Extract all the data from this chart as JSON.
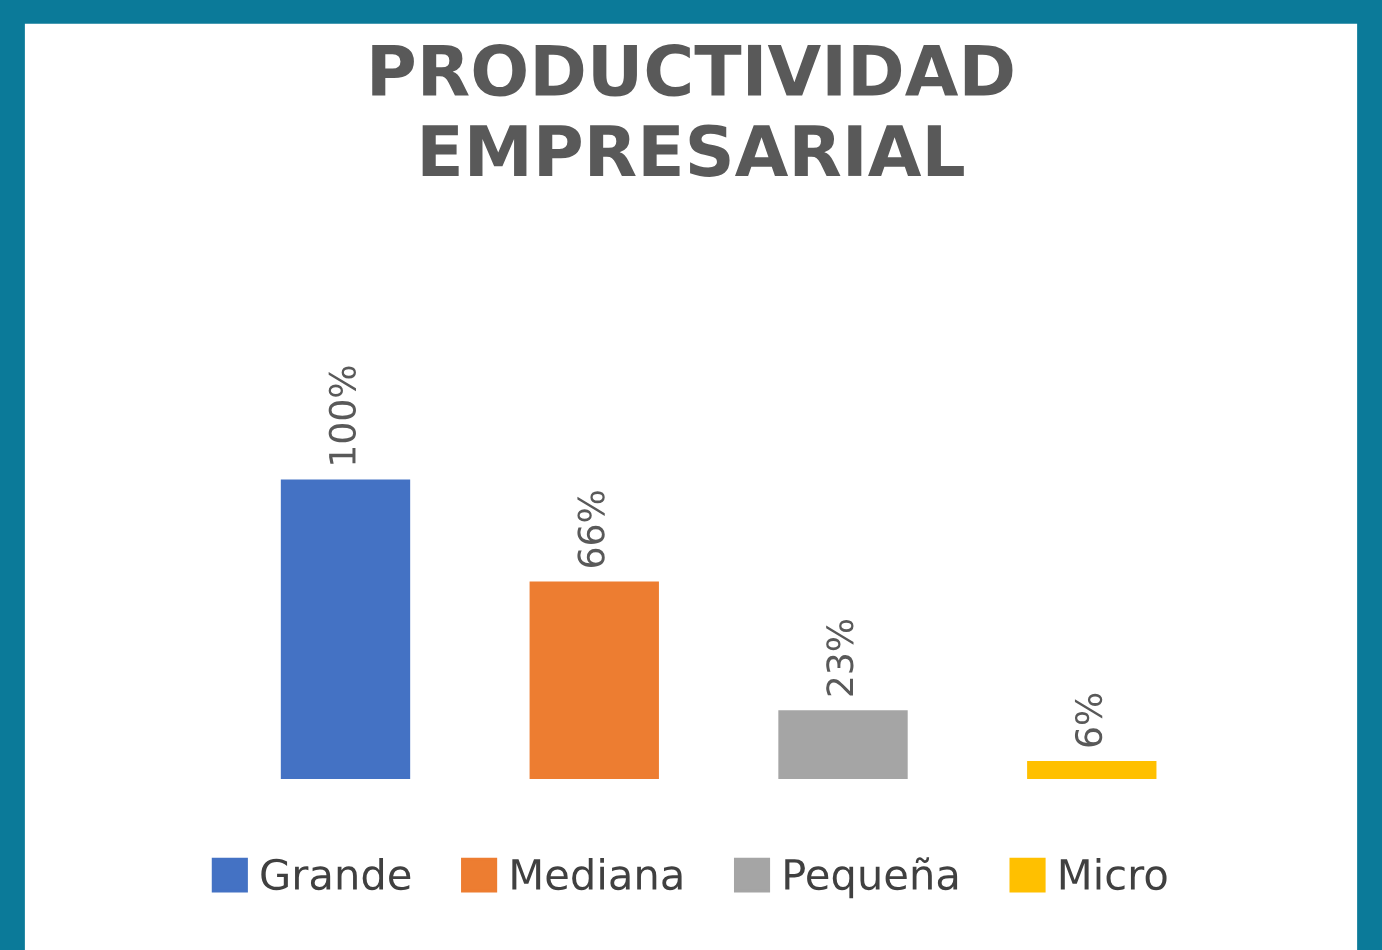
{
  "chart_data": {
    "type": "bar",
    "stacked": true,
    "title": "PRODUCTIVIDAD\nEMPRESARIAL",
    "categories": [
      null,
      null,
      null,
      null
    ],
    "series": [
      {
        "name": "Grande",
        "color": "#4472c4",
        "values": [
          100,
          null,
          null,
          null
        ],
        "value_labels": [
          "100%",
          null,
          null,
          null
        ]
      },
      {
        "name": "Mediana",
        "color": "#ed7d31",
        "values": [
          null,
          66,
          null,
          null
        ],
        "value_labels": [
          null,
          "66%",
          null,
          null
        ]
      },
      {
        "name": "Pequeña",
        "color": "#a5a5a5",
        "values": [
          null,
          null,
          23,
          null
        ],
        "value_labels": [
          null,
          null,
          "23%",
          null
        ]
      },
      {
        "name": "Micro",
        "color": "#ffc000",
        "values": [
          null,
          null,
          null,
          6
        ],
        "value_labels": [
          null,
          null,
          null,
          "6%"
        ]
      }
    ],
    "legend": "bottom"
  }
}
